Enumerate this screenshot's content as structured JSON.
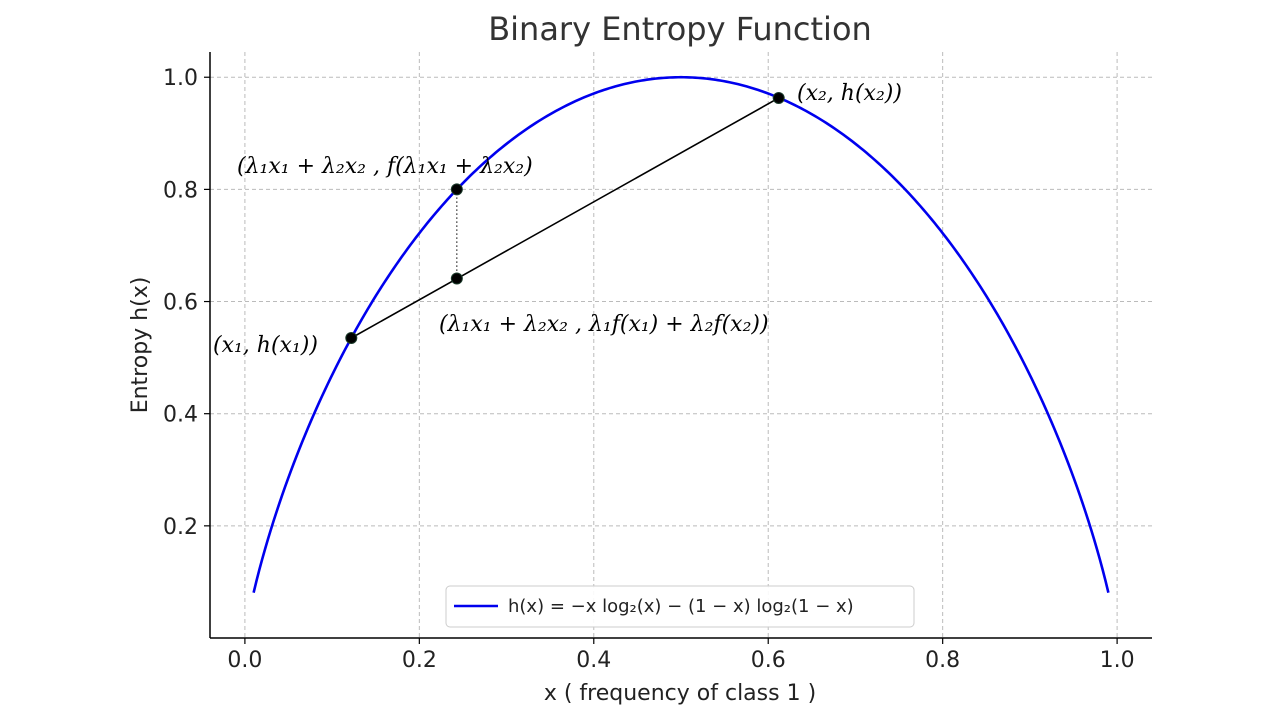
{
  "chart_data": {
    "type": "line",
    "title": "Binary Entropy Function",
    "xlabel": "x (  frequency of class 1  )",
    "ylabel": "Entropy h(x)",
    "xlim": [
      -0.04,
      1.04
    ],
    "ylim": [
      0.0,
      1.045
    ],
    "x_ticks": [
      0.0,
      0.2,
      0.4,
      0.6,
      0.8,
      1.0
    ],
    "x_tick_labels": [
      "0.0",
      "0.2",
      "0.4",
      "0.6",
      "0.8",
      "1.0"
    ],
    "y_ticks": [
      0.2,
      0.4,
      0.6,
      0.8,
      1.0
    ],
    "y_tick_labels": [
      "0.2",
      "0.4",
      "0.6",
      "0.8",
      "1.0"
    ],
    "grid": true,
    "legend_position": "bottom-center",
    "series": [
      {
        "name": "h(x) = −x log₂(x) − (1 − x) log₂(1 − x)",
        "color": "#0000ee",
        "x_range": [
          0.01,
          0.99
        ],
        "function": "binary_entropy"
      }
    ],
    "chord": {
      "x1": 0.122,
      "x2": 0.612,
      "color": "#000000"
    },
    "points": [
      {
        "id": "p1",
        "x": 0.122,
        "y": 0.535,
        "label": "(x₁, h(x₁))"
      },
      {
        "id": "p2",
        "x": 0.612,
        "y": 0.963,
        "label": "(x₂, h(x₂))"
      },
      {
        "id": "pf",
        "x": 0.243,
        "y": 0.8,
        "label": "(λ₁x₁ + λ₂x₂ , f(λ₁x₁ + λ₂x₂)"
      },
      {
        "id": "pc",
        "x": 0.243,
        "y": 0.641,
        "label": "(λ₁x₁ + λ₂x₂ , λ₁f(x₁) + λ₂f(x₂))"
      }
    ]
  }
}
